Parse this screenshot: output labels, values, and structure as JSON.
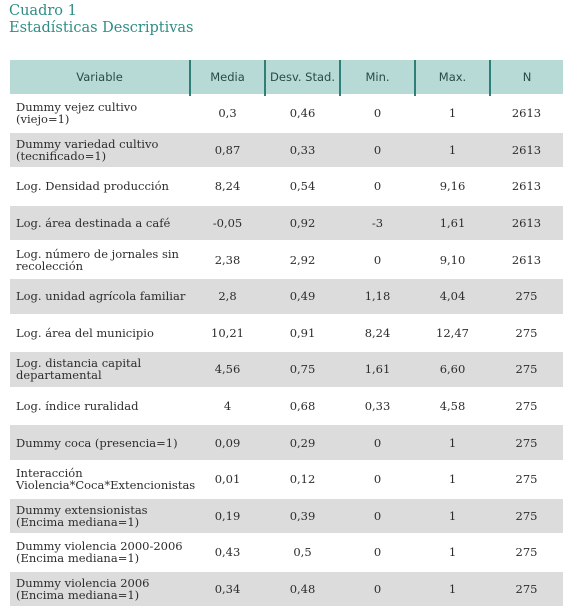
{
  "caption": {
    "line1": "Cuadro 1",
    "line2": "Estadísticas Descriptivas"
  },
  "table": {
    "headers": [
      "Variable",
      "Media",
      "Desv. Stad.",
      "Min.",
      "Max.",
      "N"
    ],
    "rows": [
      [
        "Dummy vejez cultivo (viejo=1)",
        "0,3",
        "0,46",
        "0",
        "1",
        "2613"
      ],
      [
        "Dummy variedad cultivo (tecnificado=1)",
        "0,87",
        "0,33",
        "0",
        "1",
        "2613"
      ],
      [
        "Log. Densidad producción",
        "8,24",
        "0,54",
        "0",
        "9,16",
        "2613"
      ],
      [
        "Log. área destinada a café",
        "-0,05",
        "0,92",
        "-3",
        "1,61",
        "2613"
      ],
      [
        "Log. número de jornales sin recolección",
        "2,38",
        "2,92",
        "0",
        "9,10",
        "2613"
      ],
      [
        "Log. unidad agrícola familiar",
        "2,8",
        "0,49",
        "1,18",
        "4,04",
        "275"
      ],
      [
        "Log. área del municipio",
        "10,21",
        "0,91",
        "8,24",
        "12,47",
        "275"
      ],
      [
        "Log. distancia capital departamental",
        "4,56",
        "0,75",
        "1,61",
        "6,60",
        "275"
      ],
      [
        "Log. índice ruralidad",
        "4",
        "0,68",
        "0,33",
        "4,58",
        "275"
      ],
      [
        "Dummy coca (presencia=1)",
        "0,09",
        "0,29",
        "0",
        "1",
        "275"
      ],
      [
        "Interacción Violencia*Coca*Extencionistas",
        "0,01",
        "0,12",
        "0",
        "1",
        "275"
      ],
      [
        "Dummy extensionistas (Encima mediana=1)",
        "0,19",
        "0,39",
        "0",
        "1",
        "275"
      ],
      [
        "Dummy violencia 2000-2006 (Encima mediana=1)",
        "0,43",
        "0,5",
        "0",
        "1",
        "275"
      ],
      [
        "Dummy violencia 2006 (Encima mediana=1)",
        "0,34",
        "0,48",
        "0",
        "1",
        "275"
      ]
    ]
  }
}
